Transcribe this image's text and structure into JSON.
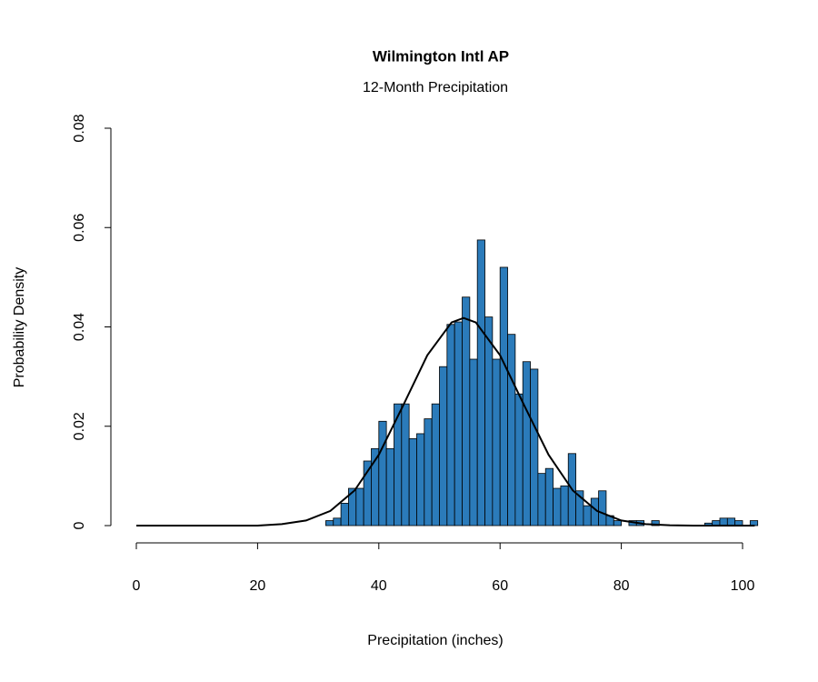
{
  "chart_data": {
    "type": "histogram",
    "title": "Wilmington Intl AP",
    "subtitle": "12-Month Precipitation",
    "x_label": "Precipitation (inches)",
    "y_label": "Probability Density",
    "color": "#2b7bba",
    "bins": [
      31.25,
      32.5,
      33.75,
      35,
      36.25,
      37.5,
      38.75,
      40,
      41.25,
      42.5,
      43.75,
      45,
      46.25,
      47.5,
      48.75,
      50,
      51.25,
      52.5,
      53.75,
      55,
      56.25,
      57.5,
      58.75,
      60,
      61.25,
      62.5,
      63.75,
      65,
      66.25,
      67.5,
      68.75,
      70,
      71.25,
      72.5,
      73.75,
      75,
      76.25,
      77.5,
      78.75,
      80,
      81.25,
      82.5,
      83.75,
      85,
      86.25,
      87.5,
      88.75,
      90,
      91.25,
      92.5,
      93.75,
      95,
      96.25,
      97.5,
      98.75,
      100,
      101.25,
      102.5
    ],
    "values": [
      0.001,
      0.0015,
      0.0045,
      0.0075,
      0.0075,
      0.013,
      0.0155,
      0.021,
      0.0155,
      0.0245,
      0.0245,
      0.0175,
      0.0185,
      0.0215,
      0.0245,
      0.032,
      0.0405,
      0.041,
      0.046,
      0.0335,
      0.0575,
      0.042,
      0.0335,
      0.052,
      0.0385,
      0.0265,
      0.033,
      0.0315,
      0.0105,
      0.0115,
      0.0075,
      0.008,
      0.0145,
      0.007,
      0.004,
      0.0055,
      0.007,
      0.002,
      0.001,
      0,
      0.001,
      0.001,
      0,
      0.001,
      0,
      0,
      0,
      0,
      0,
      0,
      0.0005,
      0.001,
      0.0015,
      0.0015,
      0.001,
      0,
      0.001
    ],
    "curve": {
      "color": "#000000",
      "x": [
        0,
        4,
        8,
        12,
        16,
        20,
        24,
        28,
        32,
        36,
        40,
        44,
        48,
        52,
        54,
        56,
        60,
        64,
        68,
        72,
        76,
        80,
        84,
        88,
        92,
        96,
        100,
        102
      ],
      "y": [
        0,
        0,
        0,
        0,
        0,
        0,
        0.0003,
        0.00103,
        0.00294,
        0.00707,
        0.01426,
        0.02415,
        0.0343,
        0.0409,
        0.0418,
        0.0409,
        0.0343,
        0.02415,
        0.01426,
        0.00707,
        0.00294,
        0.00103,
        0.0003,
        7e-05,
        0,
        0,
        0,
        0
      ]
    },
    "xlim": [
      0,
      100
    ],
    "xticks": [
      0,
      20,
      40,
      60,
      80,
      100
    ],
    "ylim": [
      0,
      0.08
    ],
    "yticks": [
      0,
      0.02,
      0.04,
      0.06,
      0.08
    ]
  }
}
